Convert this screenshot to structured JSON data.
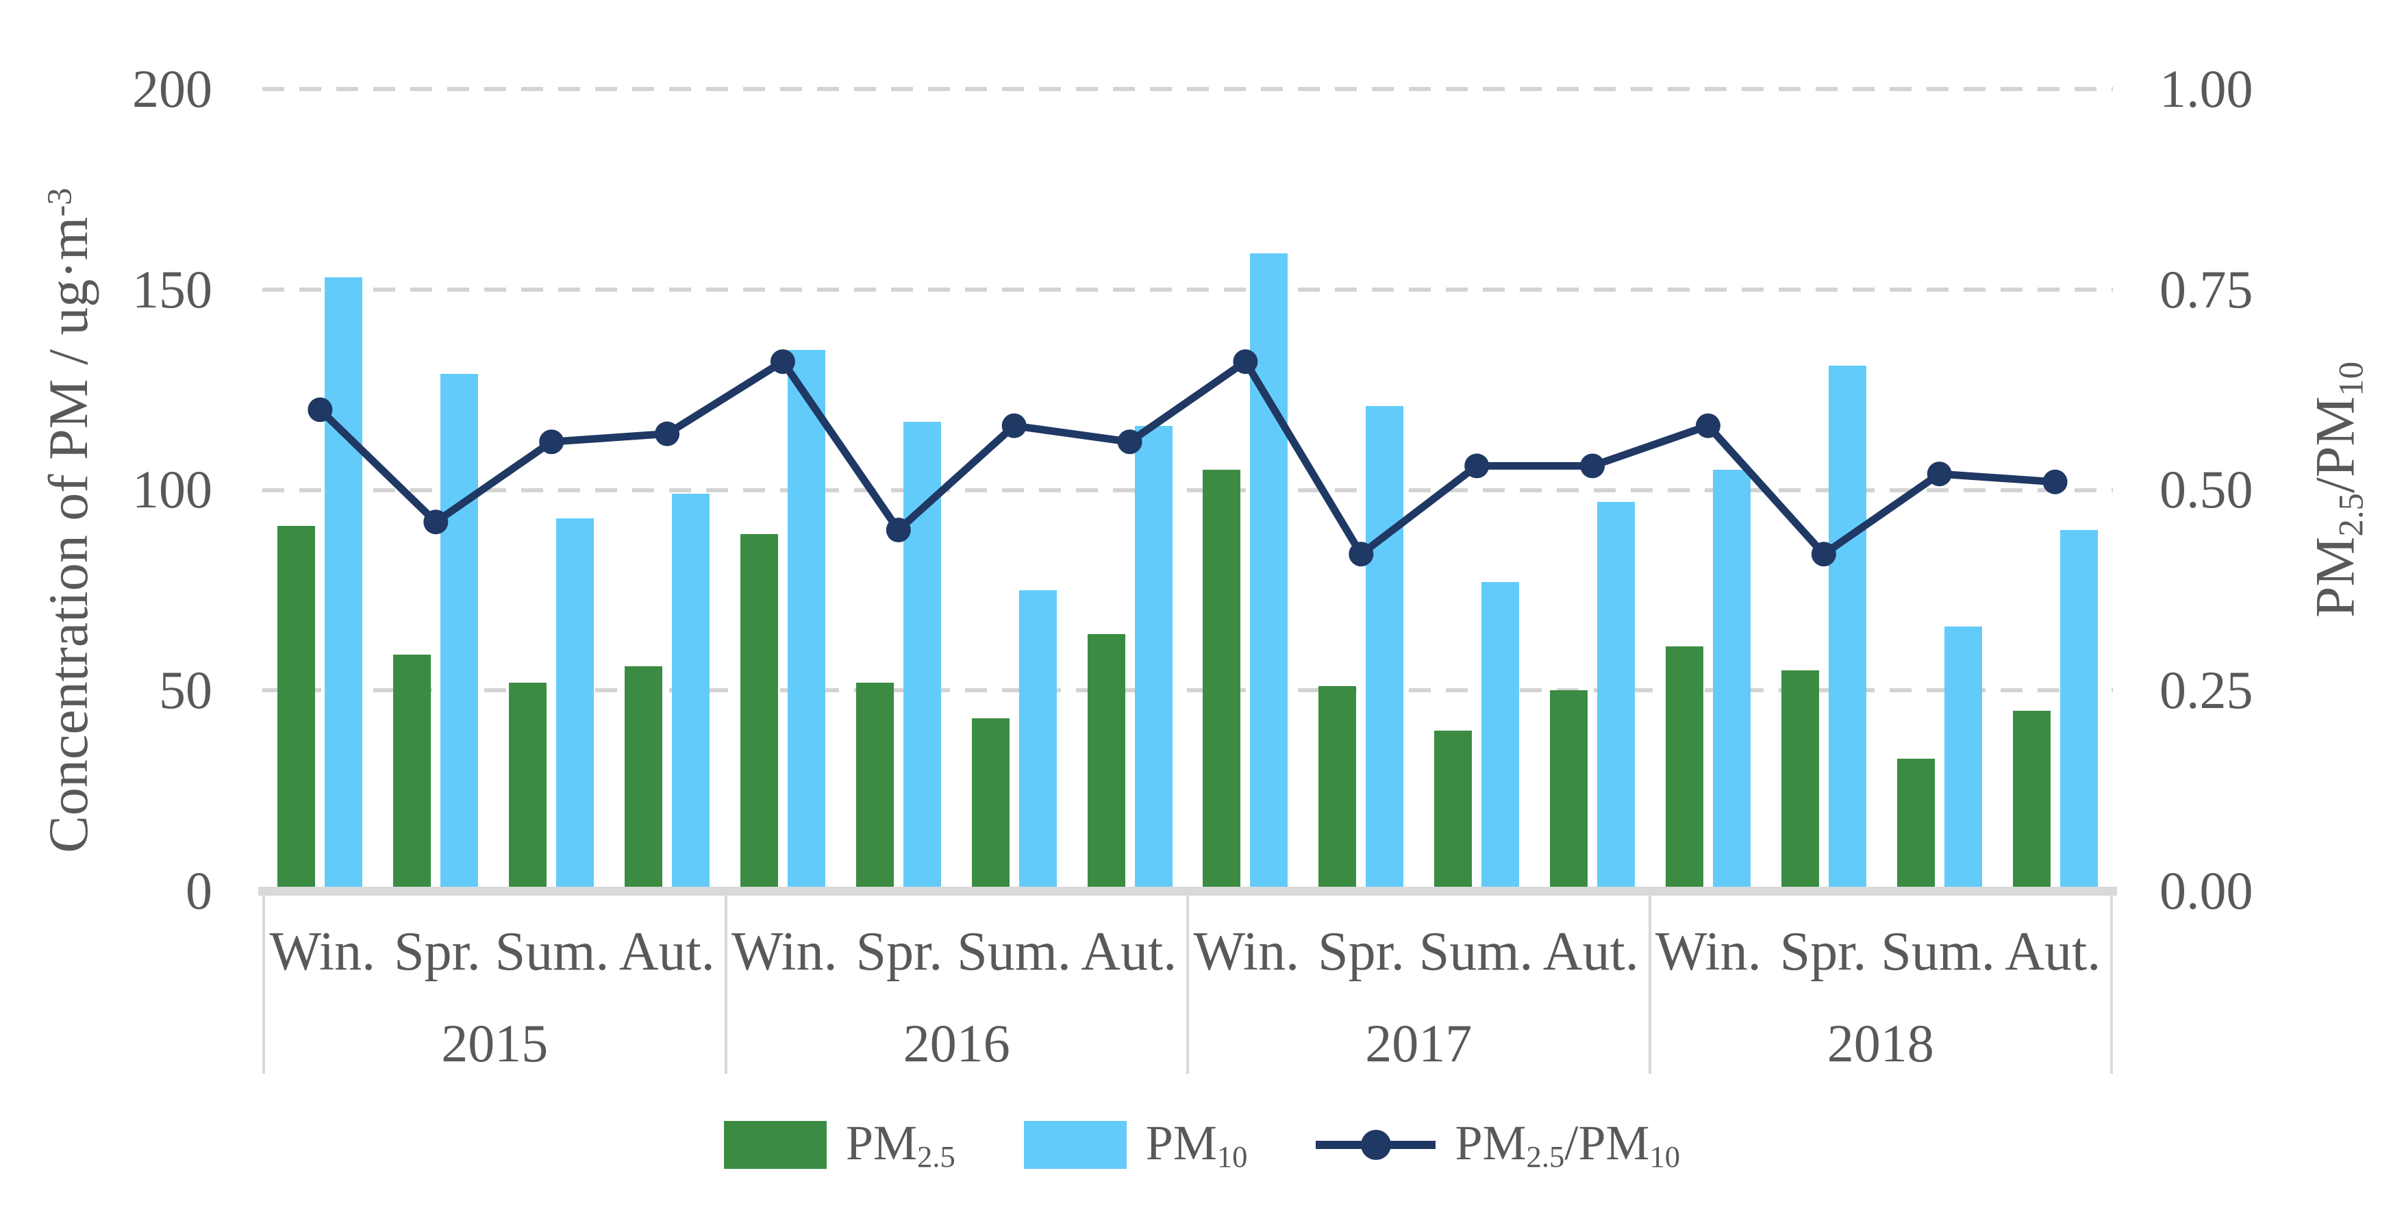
{
  "chart": {
    "left_axis": {
      "title_parts": [
        {
          "t": "Concentration of PM / ug·m"
        },
        {
          "sup": "-3"
        }
      ],
      "ticks": [
        "0",
        "50",
        "100",
        "150",
        "200"
      ]
    },
    "right_axis": {
      "title_parts": [
        {
          "t": "PM"
        },
        {
          "sub": "2.5"
        },
        {
          "t": "/PM"
        },
        {
          "sub": "10"
        }
      ],
      "ticks": [
        "0.00",
        "0.25",
        "0.50",
        "0.75",
        "1.00"
      ]
    },
    "legend": [
      {
        "marker": "pm25-swatch",
        "label_parts": [
          {
            "t": "PM"
          },
          {
            "sub": "2.5"
          }
        ]
      },
      {
        "marker": "pm10-swatch",
        "label_parts": [
          {
            "t": "PM"
          },
          {
            "sub": "10"
          }
        ]
      },
      {
        "marker": "ratio-line",
        "label_parts": [
          {
            "t": "PM"
          },
          {
            "sub": "2.5"
          },
          {
            "t": "/PM"
          },
          {
            "sub": "10"
          }
        ]
      }
    ]
  },
  "colors": {
    "pm25_green": "#3B8C42",
    "pm10_blue": "#63CBFA",
    "ratio_navy": "#1F3864",
    "grid_gray": "#D3D3D3",
    "axis_gray": "#D9D9D9",
    "text_gray": "#595959"
  },
  "chart_data": {
    "type": "bar",
    "subtype": "grouped bars with secondary-axis line",
    "years": [
      "2015",
      "2016",
      "2017",
      "2018"
    ],
    "seasons": [
      "Win.",
      "Spr.",
      "Sum.",
      "Aut."
    ],
    "categories": [
      "2015 Win.",
      "2015 Spr.",
      "2015 Sum.",
      "2015 Aut.",
      "2016 Win.",
      "2016 Spr.",
      "2016 Sum.",
      "2016 Aut.",
      "2017 Win.",
      "2017 Spr.",
      "2017 Sum.",
      "2017 Aut.",
      "2018 Win.",
      "2018 Spr.",
      "2018 Sum.",
      "2018 Aut."
    ],
    "series": [
      {
        "name": "PM2.5",
        "type": "bar",
        "axis": "left",
        "color": "#3B8C42",
        "values": [
          91,
          59,
          52,
          56,
          89,
          52,
          43,
          64,
          105,
          51,
          40,
          50,
          61,
          55,
          33,
          45
        ]
      },
      {
        "name": "PM10",
        "type": "bar",
        "axis": "left",
        "color": "#63CBFA",
        "values": [
          153,
          129,
          93,
          99,
          135,
          117,
          75,
          116,
          159,
          121,
          77,
          97,
          105,
          131,
          66,
          90
        ]
      },
      {
        "name": "PM2.5/PM10",
        "type": "line",
        "axis": "right",
        "color": "#1F3864",
        "values": [
          0.6,
          0.46,
          0.56,
          0.57,
          0.66,
          0.45,
          0.58,
          0.56,
          0.66,
          0.42,
          0.53,
          0.53,
          0.58,
          0.42,
          0.52,
          0.51
        ]
      }
    ],
    "ylabel_left": "Concentration of PM / ug·m-3",
    "ylabel_right": "PM2.5/PM10",
    "ylim_left": [
      0,
      200
    ],
    "ylim_right": [
      0.0,
      1.0
    ],
    "grid": "horizontal dashed at 50,100,150,200",
    "legend_position": "bottom center"
  }
}
